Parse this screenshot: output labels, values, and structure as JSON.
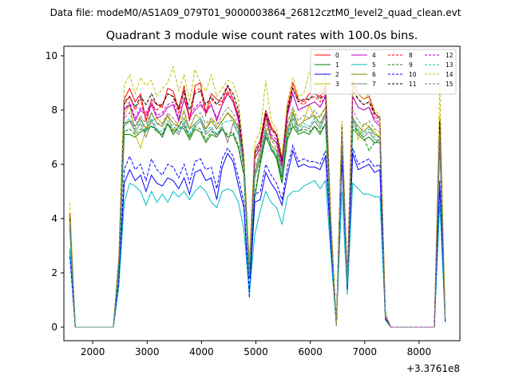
{
  "chart_data": {
    "type": "line",
    "suptitle": "Data file: modeM0/AS1A09_079T01_9000003864_26812cztM0_level2_quad_clean.evt",
    "title": "Quadrant 3 module wise count rates with 100.0s bins.",
    "xlabel": "",
    "ylabel": "",
    "x_offset_label": "+3.3761e8",
    "xlim": [
      1470,
      8750
    ],
    "ylim": [
      -0.5,
      10.35
    ],
    "xticks": [
      2000,
      3000,
      4000,
      5000,
      6000,
      7000,
      8000
    ],
    "yticks": [
      0,
      2,
      4,
      6,
      8,
      10
    ],
    "x": [
      1580,
      1680,
      1780,
      1880,
      1980,
      2080,
      2180,
      2280,
      2380,
      2480,
      2580,
      2680,
      2780,
      2880,
      2980,
      3080,
      3180,
      3280,
      3380,
      3480,
      3580,
      3680,
      3780,
      3880,
      3980,
      4080,
      4180,
      4280,
      4380,
      4480,
      4580,
      4680,
      4780,
      4880,
      4980,
      5080,
      5180,
      5280,
      5380,
      5480,
      5580,
      5680,
      5780,
      5880,
      5980,
      6080,
      6180,
      6280,
      6380,
      6480,
      6580,
      6680,
      6780,
      6880,
      6980,
      7080,
      7180,
      7280,
      7380,
      7480,
      7580,
      7680,
      7780,
      7880,
      7980,
      8080,
      8180,
      8280,
      8380,
      8480
    ],
    "series": [
      {
        "name": "0",
        "color": "#ff0000",
        "dash": false,
        "values": [
          4.2,
          0,
          0,
          0,
          0,
          0,
          0,
          0,
          0,
          2.5,
          8.4,
          8.8,
          8.3,
          8.6,
          7.6,
          8.4,
          8.2,
          8.1,
          8.8,
          8.7,
          8.0,
          8.9,
          7.6,
          8.9,
          9.0,
          7.9,
          8.6,
          8.4,
          8.3,
          8.9,
          8.4,
          7.8,
          6.0,
          2.2,
          6.5,
          6.9,
          8.0,
          7.4,
          7.1,
          6.2,
          8.1,
          9.0,
          8.4,
          8.3,
          8.6,
          8.6,
          8.5,
          8.9,
          3.9,
          0.05,
          7.5,
          1.8,
          9.0,
          8.6,
          8.4,
          8.5,
          7.9,
          7.7,
          0.4,
          0,
          0,
          0,
          0,
          0,
          0,
          0,
          0,
          0,
          7.4,
          0.3
        ]
      },
      {
        "name": "1",
        "color": "#008000",
        "dash": false,
        "values": [
          3.6,
          0,
          0,
          0,
          0,
          0,
          0,
          0,
          0,
          2.1,
          7.1,
          7.1,
          7.0,
          7.2,
          7.3,
          7.4,
          7.3,
          7.0,
          7.5,
          7.1,
          7.4,
          7.3,
          6.9,
          7.3,
          7.2,
          6.8,
          7.1,
          7.0,
          7.3,
          7.0,
          7.1,
          6.6,
          5.6,
          1.8,
          4.8,
          6.0,
          7.0,
          6.6,
          6.2,
          5.3,
          6.9,
          7.4,
          7.1,
          7.2,
          7.1,
          7.4,
          7.1,
          7.5,
          3.4,
          0.05,
          6.7,
          1.6,
          7.3,
          7.1,
          6.9,
          7.0,
          6.8,
          6.8,
          0.3,
          0,
          0,
          0,
          0,
          0,
          0,
          0,
          0,
          0,
          6.8,
          0.25
        ]
      },
      {
        "name": "2",
        "color": "#0000ff",
        "dash": false,
        "values": [
          2.8,
          0,
          0,
          0,
          0,
          0,
          0,
          0,
          0,
          1.6,
          5.3,
          5.8,
          5.4,
          5.6,
          5.0,
          5.6,
          5.3,
          5.2,
          5.5,
          5.4,
          5.1,
          5.5,
          4.9,
          5.7,
          5.8,
          5.4,
          5.5,
          4.7,
          5.9,
          6.4,
          6.1,
          5.2,
          4.4,
          1.1,
          4.6,
          4.7,
          5.7,
          5.3,
          5.0,
          4.5,
          5.6,
          6.5,
          5.9,
          6.0,
          5.9,
          5.9,
          5.8,
          6.3,
          3.0,
          0.05,
          6.2,
          1.4,
          6.4,
          5.8,
          5.9,
          6.0,
          5.7,
          5.8,
          0.3,
          0,
          0,
          0,
          0,
          0,
          0,
          0,
          0,
          0,
          5.2,
          0.2
        ]
      },
      {
        "name": "3",
        "color": "#bfbf00",
        "dash": false,
        "values": [
          4.0,
          0,
          0,
          0,
          0,
          0,
          0,
          0,
          0,
          2.3,
          7.8,
          8.2,
          7.1,
          6.6,
          7.3,
          7.6,
          7.7,
          7.5,
          7.8,
          7.2,
          7.6,
          8.0,
          7.3,
          7.8,
          7.7,
          7.3,
          7.7,
          7.5,
          7.6,
          7.9,
          7.6,
          7.4,
          6.2,
          2.0,
          5.6,
          6.6,
          7.7,
          6.9,
          6.8,
          5.8,
          7.6,
          8.0,
          7.4,
          7.6,
          8.2,
          7.7,
          7.8,
          8.1,
          3.6,
          0.05,
          7.0,
          1.6,
          7.8,
          6.9,
          7.5,
          7.4,
          7.2,
          7.0,
          0.35,
          0,
          0,
          0,
          0,
          0,
          0,
          0,
          0,
          0,
          7.8,
          0.3
        ]
      },
      {
        "name": "4",
        "color": "#bf00bf",
        "dash": false,
        "values": [
          3.9,
          0,
          0,
          0,
          0,
          0,
          0,
          0,
          0,
          2.3,
          8.0,
          8.2,
          7.6,
          8.0,
          7.8,
          8.2,
          7.7,
          7.8,
          8.1,
          8.2,
          7.6,
          8.4,
          7.7,
          8.0,
          8.2,
          7.9,
          8.2,
          7.6,
          8.2,
          8.6,
          8.3,
          7.6,
          6.0,
          2.0,
          6.2,
          6.6,
          7.8,
          7.0,
          6.8,
          5.9,
          7.8,
          8.6,
          8.0,
          8.1,
          8.2,
          8.3,
          8.1,
          8.5,
          3.7,
          0.05,
          7.2,
          1.7,
          8.5,
          8.1,
          8.0,
          8.1,
          7.6,
          7.4,
          0.4,
          0,
          0,
          0,
          0,
          0,
          0,
          0,
          0,
          0,
          7.2,
          0.3
        ]
      },
      {
        "name": "5",
        "color": "#00bfbf",
        "dash": false,
        "values": [
          2.9,
          0,
          0,
          0,
          0,
          0,
          0,
          0,
          0,
          1.5,
          4.6,
          5.3,
          5.2,
          5.0,
          4.5,
          5.0,
          4.6,
          4.9,
          4.6,
          5.0,
          4.8,
          5.0,
          4.7,
          5.0,
          5.2,
          5.0,
          4.6,
          4.4,
          5.0,
          5.1,
          5.0,
          4.6,
          3.6,
          1.2,
          3.4,
          4.3,
          5.0,
          4.6,
          4.4,
          3.8,
          4.8,
          5.0,
          5.0,
          5.2,
          5.3,
          5.4,
          5.1,
          5.4,
          2.6,
          0.05,
          5.0,
          1.2,
          5.3,
          5.1,
          4.9,
          4.9,
          4.8,
          4.8,
          0.25,
          0,
          0,
          0,
          0,
          0,
          0,
          0,
          0,
          0,
          4.6,
          0.2
        ]
      },
      {
        "name": "6",
        "color": "#808000",
        "dash": false,
        "values": [
          3.9,
          0,
          0,
          0,
          0,
          0,
          0,
          0,
          0,
          2.2,
          7.5,
          7.6,
          7.4,
          7.7,
          7.3,
          7.9,
          7.5,
          7.4,
          7.8,
          7.5,
          7.4,
          7.7,
          7.3,
          7.5,
          7.7,
          7.3,
          7.6,
          7.3,
          7.6,
          7.9,
          7.7,
          7.3,
          6.0,
          1.9,
          5.7,
          6.3,
          7.3,
          6.7,
          6.5,
          5.6,
          7.3,
          7.9,
          7.4,
          7.6,
          7.7,
          7.8,
          7.5,
          7.9,
          3.5,
          0.05,
          6.9,
          1.6,
          7.7,
          7.4,
          7.2,
          7.4,
          7.1,
          7.0,
          0.35,
          0,
          0,
          0,
          0,
          0,
          0,
          0,
          0,
          0,
          7.0,
          0.3
        ]
      },
      {
        "name": "7",
        "color": "#7f7f7f",
        "dash": false,
        "values": [
          3.8,
          0,
          0,
          0,
          0,
          0,
          0,
          0,
          0,
          2.2,
          7.4,
          7.6,
          7.2,
          7.5,
          7.0,
          7.6,
          7.2,
          7.1,
          7.5,
          7.3,
          7.1,
          7.5,
          7.0,
          7.4,
          7.6,
          7.1,
          7.3,
          7.0,
          7.4,
          6.8,
          7.5,
          7.1,
          5.8,
          1.9,
          5.5,
          6.2,
          7.1,
          6.5,
          6.3,
          5.5,
          7.1,
          7.7,
          7.2,
          7.4,
          7.3,
          7.6,
          7.3,
          7.8,
          3.4,
          0.05,
          6.8,
          1.5,
          7.6,
          7.2,
          7.0,
          7.2,
          6.9,
          6.9,
          0.35,
          0,
          0,
          0,
          0,
          0,
          0,
          0,
          0,
          0,
          6.9,
          0.3
        ]
      },
      {
        "name": "8",
        "color": "#ff0000",
        "dash": true,
        "values": [
          4.1,
          0,
          0,
          0,
          0,
          0,
          0,
          0,
          0,
          2.4,
          8.2,
          8.5,
          8.0,
          8.4,
          7.6,
          8.2,
          8.0,
          8.2,
          8.6,
          8.5,
          7.9,
          8.6,
          7.6,
          8.7,
          8.8,
          7.8,
          8.4,
          8.2,
          8.2,
          8.7,
          8.3,
          7.7,
          5.9,
          2.1,
          6.4,
          6.7,
          7.8,
          7.3,
          7.0,
          6.1,
          7.9,
          8.8,
          8.3,
          8.2,
          8.4,
          8.5,
          8.3,
          8.7,
          3.8,
          0.05,
          7.4,
          1.7,
          8.8,
          8.4,
          8.2,
          8.3,
          7.8,
          7.6,
          0.4,
          0,
          0,
          0,
          0,
          0,
          0,
          0,
          0,
          0,
          7.3,
          0.3
        ]
      },
      {
        "name": "9",
        "color": "#008000",
        "dash": true,
        "values": [
          3.7,
          0,
          0,
          0,
          0,
          0,
          0,
          0,
          0,
          2.1,
          7.2,
          7.3,
          7.1,
          7.3,
          7.2,
          7.4,
          7.2,
          7.1,
          7.5,
          7.2,
          7.3,
          7.4,
          7.0,
          7.4,
          7.3,
          6.9,
          7.2,
          7.1,
          7.3,
          7.1,
          7.2,
          6.7,
          5.6,
          1.8,
          4.9,
          6.1,
          7.0,
          6.6,
          6.3,
          5.4,
          7.0,
          7.5,
          7.2,
          7.3,
          7.2,
          7.4,
          7.2,
          7.5,
          3.4,
          0.05,
          6.8,
          1.6,
          7.4,
          7.2,
          7.0,
          6.5,
          6.8,
          6.9,
          0.3,
          0,
          0,
          0,
          0,
          0,
          0,
          0,
          0,
          0,
          6.9,
          0.25
        ]
      },
      {
        "name": "10",
        "color": "#0000ff",
        "dash": true,
        "values": [
          2.6,
          0,
          0,
          0,
          0,
          0,
          0,
          0,
          0,
          1.7,
          5.8,
          6.3,
          5.8,
          6.0,
          5.4,
          6.2,
          5.8,
          5.6,
          6.0,
          5.9,
          5.5,
          6.0,
          5.3,
          6.1,
          6.2,
          5.8,
          5.9,
          5.1,
          6.2,
          6.6,
          6.3,
          5.5,
          4.6,
          1.3,
          4.9,
          5.0,
          6.0,
          5.6,
          5.3,
          4.7,
          5.9,
          6.7,
          6.1,
          6.2,
          6.1,
          6.1,
          6.0,
          6.5,
          3.1,
          0.05,
          6.3,
          1.4,
          6.6,
          6.0,
          6.1,
          6.2,
          5.9,
          6.0,
          0.3,
          0,
          0,
          0,
          0,
          0,
          0,
          0,
          0,
          0,
          5.4,
          0.2
        ]
      },
      {
        "name": "11",
        "color": "#000000",
        "dash": true,
        "values": [
          4.0,
          0,
          0,
          0,
          0,
          0,
          0,
          0,
          0,
          2.4,
          8.3,
          8.5,
          8.1,
          8.5,
          8.2,
          8.6,
          8.2,
          8.2,
          8.6,
          8.5,
          8.1,
          8.7,
          8.0,
          8.6,
          8.7,
          8.2,
          8.5,
          8.2,
          8.5,
          8.9,
          8.6,
          8.0,
          6.2,
          2.1,
          6.4,
          6.8,
          7.9,
          7.3,
          7.1,
          6.1,
          8.0,
          8.8,
          8.3,
          8.4,
          8.4,
          8.6,
          8.4,
          8.8,
          3.8,
          0.05,
          7.4,
          1.7,
          8.7,
          8.4,
          8.2,
          8.3,
          7.9,
          7.7,
          0.4,
          0,
          0,
          0,
          0,
          0,
          0,
          0,
          0,
          0,
          7.6,
          0.3
        ]
      },
      {
        "name": "12",
        "color": "#bf00bf",
        "dash": true,
        "values": [
          3.9,
          0,
          0,
          0,
          0,
          0,
          0,
          0,
          0,
          2.3,
          8.0,
          8.3,
          7.7,
          8.1,
          7.9,
          8.3,
          7.8,
          7.9,
          8.2,
          8.3,
          7.7,
          8.4,
          7.8,
          8.1,
          8.3,
          7.9,
          8.2,
          7.7,
          8.2,
          8.6,
          8.3,
          7.7,
          6.0,
          2.0,
          6.3,
          6.6,
          7.8,
          7.1,
          6.9,
          6.0,
          7.9,
          8.6,
          8.0,
          8.1,
          8.2,
          8.3,
          8.1,
          8.6,
          3.7,
          0.05,
          7.2,
          1.7,
          8.5,
          8.1,
          8.0,
          8.1,
          7.7,
          7.5,
          0.4,
          0,
          0,
          0,
          0,
          0,
          0,
          0,
          0,
          0,
          7.3,
          0.3
        ]
      },
      {
        "name": "13",
        "color": "#00bfbf",
        "dash": true,
        "values": [
          3.8,
          0,
          0,
          0,
          0,
          0,
          0,
          0,
          0,
          2.2,
          7.5,
          7.7,
          7.3,
          7.6,
          7.2,
          7.7,
          7.3,
          7.2,
          7.6,
          7.4,
          7.2,
          7.6,
          7.1,
          7.5,
          7.7,
          7.2,
          7.4,
          7.1,
          7.5,
          7.6,
          7.6,
          7.2,
          5.9,
          1.9,
          5.6,
          6.3,
          7.2,
          6.6,
          6.4,
          5.6,
          7.2,
          7.8,
          7.3,
          7.5,
          7.4,
          7.7,
          7.4,
          7.9,
          3.5,
          0.05,
          6.9,
          1.6,
          7.7,
          7.3,
          7.1,
          7.3,
          7.0,
          7.0,
          0.35,
          0,
          0,
          0,
          0,
          0,
          0,
          0,
          0,
          0,
          7.0,
          0.3
        ]
      },
      {
        "name": "14",
        "color": "#bfbf00",
        "dash": true,
        "values": [
          4.6,
          0,
          0,
          0,
          0,
          0,
          0,
          0,
          0,
          2.6,
          8.9,
          9.3,
          8.6,
          9.2,
          8.9,
          9.1,
          8.5,
          8.8,
          9.0,
          9.6,
          8.7,
          9.3,
          8.3,
          9.5,
          9.0,
          8.7,
          9.3,
          8.5,
          8.8,
          9.1,
          9.0,
          8.4,
          6.3,
          2.4,
          6.8,
          7.2,
          9.1,
          7.6,
          7.3,
          6.3,
          8.3,
          9.2,
          8.5,
          8.6,
          9.4,
          8.8,
          8.6,
          9.4,
          4.0,
          0.05,
          7.6,
          1.8,
          9.2,
          8.6,
          8.4,
          8.6,
          8.0,
          7.8,
          0.6,
          0,
          0,
          0,
          0,
          0,
          0,
          0,
          0,
          0,
          9.0,
          0.35
        ]
      },
      {
        "name": "15",
        "color": "#7f7f7f",
        "dash": true,
        "values": [
          3.9,
          0,
          0,
          0,
          0,
          0,
          0,
          0,
          0,
          2.3,
          7.7,
          7.9,
          7.4,
          7.8,
          7.5,
          7.9,
          7.5,
          7.5,
          7.9,
          7.7,
          7.4,
          7.9,
          7.3,
          7.8,
          7.9,
          7.5,
          7.7,
          7.4,
          7.8,
          8.1,
          7.9,
          7.4,
          6.0,
          2.0,
          5.9,
          6.4,
          7.5,
          6.9,
          6.6,
          5.8,
          7.5,
          8.1,
          7.6,
          7.8,
          7.7,
          8.0,
          7.7,
          8.1,
          3.6,
          0.05,
          7.1,
          1.6,
          8.0,
          7.6,
          7.4,
          7.6,
          7.3,
          7.2,
          0.35,
          0,
          0,
          0,
          0,
          0,
          0,
          0,
          0,
          0,
          7.1,
          0.3
        ]
      }
    ],
    "legend": {
      "position": "top-right",
      "columns": 4
    }
  }
}
